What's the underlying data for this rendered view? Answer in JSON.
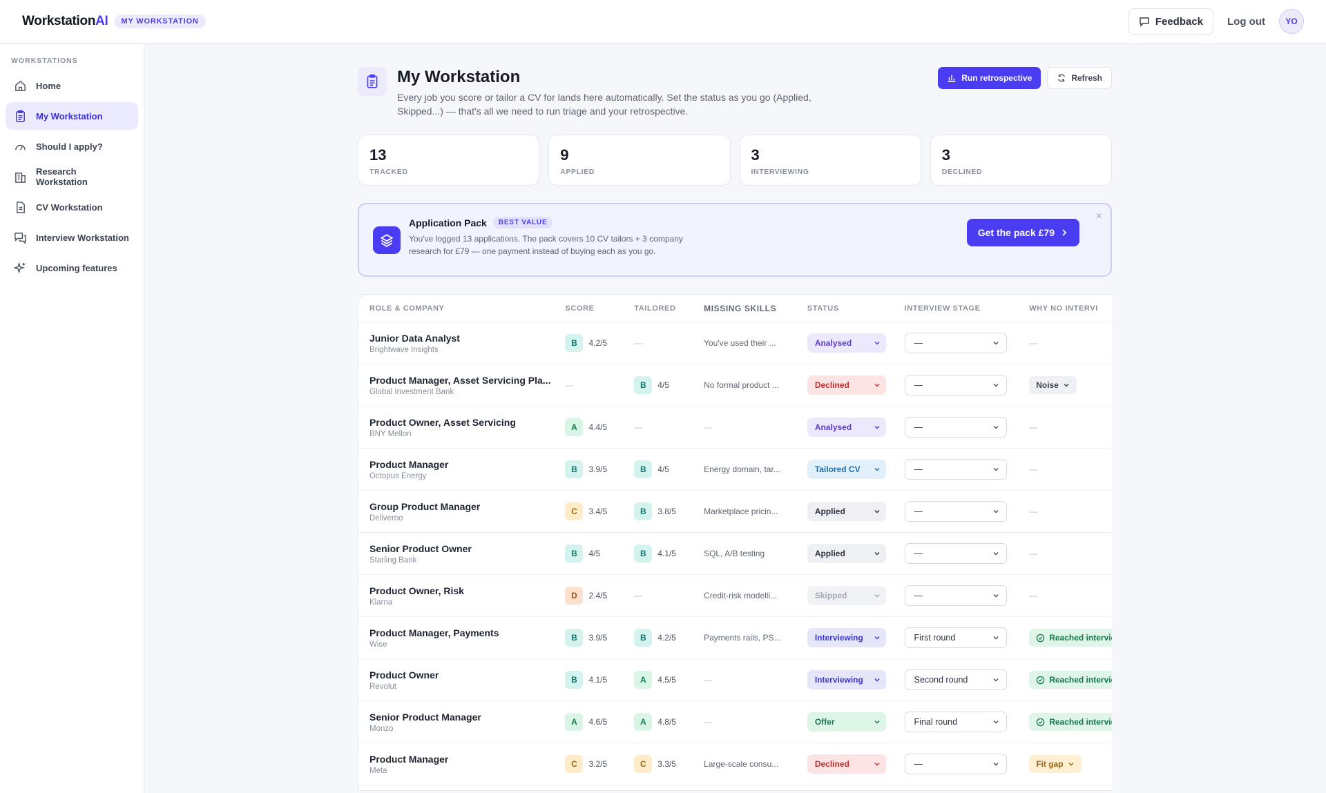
{
  "app": {
    "name_main": "Workstation",
    "name_ai": "AI",
    "badge": "MY WORKSTATION"
  },
  "topbar": {
    "feedback": "Feedback",
    "logout": "Log out",
    "avatar": "YO"
  },
  "sidebar": {
    "heading": "WORKSTATIONS",
    "items": [
      {
        "label": "Home",
        "icon": "home-icon"
      },
      {
        "label": "My Workstation",
        "icon": "clipboard-icon"
      },
      {
        "label": "Should I apply?",
        "icon": "gauge-icon"
      },
      {
        "label": "Research Workstation",
        "icon": "building-icon"
      },
      {
        "label": "CV Workstation",
        "icon": "document-icon"
      },
      {
        "label": "Interview Workstation",
        "icon": "chat-icon"
      },
      {
        "label": "Upcoming features",
        "icon": "sparkle-icon"
      }
    ]
  },
  "header": {
    "title": "My Workstation",
    "description": "Every job you score or tailor a CV for lands here automatically. Set the status as you go (Applied, Skipped...) — that's all we need to run triage and your retrospective.",
    "run_retro": "Run retrospective",
    "refresh": "Refresh"
  },
  "stats": [
    {
      "value": "13",
      "label": "TRACKED"
    },
    {
      "value": "9",
      "label": "APPLIED"
    },
    {
      "value": "3",
      "label": "INTERVIEWING"
    },
    {
      "value": "3",
      "label": "DECLINED"
    }
  ],
  "pack": {
    "title": "Application Pack",
    "badge": "BEST VALUE",
    "description": "You've logged 13 applications. The pack covers 10 CV tailors + 3 company research for £79 — one payment instead of buying each as you go.",
    "cta": "Get the pack £79",
    "close": "×"
  },
  "table": {
    "columns": [
      "ROLE & COMPANY",
      "SCORE",
      "TAILORED",
      "MISSING SKILLS",
      "STATUS",
      "INTERVIEW STAGE",
      "WHY NO INTERVI"
    ],
    "rows": [
      {
        "role": "Junior Data Analyst",
        "company": "Brightwave Insights",
        "score_grade": "B",
        "score": "4.2/5",
        "tail_grade": "",
        "tailored": "—",
        "missing": "You've used their ...",
        "status": "Analysed",
        "status_key": "analysed",
        "stage": "—",
        "why": "—",
        "why_key": "none"
      },
      {
        "role": "Product Manager, Asset Servicing Pla...",
        "company": "Global Investment Bank",
        "score_grade": "",
        "score": "—",
        "tail_grade": "B",
        "tailored": "4/5",
        "missing": "No formal product ...",
        "status": "Declined",
        "status_key": "declined",
        "stage": "—",
        "why": "Noise",
        "why_key": "noise"
      },
      {
        "role": "Product Owner, Asset Servicing",
        "company": "BNY Mellon",
        "score_grade": "A",
        "score": "4.4/5",
        "tail_grade": "",
        "tailored": "—",
        "missing": "—",
        "status": "Analysed",
        "status_key": "analysed",
        "stage": "—",
        "why": "—",
        "why_key": "none"
      },
      {
        "role": "Product Manager",
        "company": "Octopus Energy",
        "score_grade": "B",
        "score": "3.9/5",
        "tail_grade": "B",
        "tailored": "4/5",
        "missing": "Energy domain, tar...",
        "status": "Tailored CV",
        "status_key": "tailored",
        "stage": "—",
        "why": "—",
        "why_key": "none"
      },
      {
        "role": "Group Product Manager",
        "company": "Deliveroo",
        "score_grade": "C",
        "score": "3.4/5",
        "tail_grade": "B",
        "tailored": "3.8/5",
        "missing": "Marketplace pricin...",
        "status": "Applied",
        "status_key": "applied",
        "stage": "—",
        "why": "—",
        "why_key": "none"
      },
      {
        "role": "Senior Product Owner",
        "company": "Starling Bank",
        "score_grade": "B",
        "score": "4/5",
        "tail_grade": "B",
        "tailored": "4.1/5",
        "missing": "SQL, A/B testing",
        "status": "Applied",
        "status_key": "applied",
        "stage": "—",
        "why": "—",
        "why_key": "none"
      },
      {
        "role": "Product Owner, Risk",
        "company": "Klarna",
        "score_grade": "D",
        "score": "2.4/5",
        "tail_grade": "",
        "tailored": "—",
        "missing": "Credit-risk modelli...",
        "status": "Skipped",
        "status_key": "skipped",
        "stage": "—",
        "why": "—",
        "why_key": "none"
      },
      {
        "role": "Product Manager, Payments",
        "company": "Wise",
        "score_grade": "B",
        "score": "3.9/5",
        "tail_grade": "B",
        "tailored": "4.2/5",
        "missing": "Payments rails, PS...",
        "status": "Interviewing",
        "status_key": "interviewing",
        "stage": "First round",
        "why": "Reached interview",
        "why_key": "reached"
      },
      {
        "role": "Product Owner",
        "company": "Revolut",
        "score_grade": "B",
        "score": "4.1/5",
        "tail_grade": "A",
        "tailored": "4.5/5",
        "missing": "—",
        "status": "Interviewing",
        "status_key": "interviewing",
        "stage": "Second round",
        "why": "Reached interview",
        "why_key": "reached"
      },
      {
        "role": "Senior Product Manager",
        "company": "Monzo",
        "score_grade": "A",
        "score": "4.6/5",
        "tail_grade": "A",
        "tailored": "4.8/5",
        "missing": "—",
        "status": "Offer",
        "status_key": "offer",
        "stage": "Final round",
        "why": "Reached interview",
        "why_key": "reached"
      },
      {
        "role": "Product Manager",
        "company": "Meta",
        "score_grade": "C",
        "score": "3.2/5",
        "tail_grade": "C",
        "tailored": "3.3/5",
        "missing": "Large-scale consu...",
        "status": "Declined",
        "status_key": "declined",
        "stage": "—",
        "why": "Fit gap",
        "why_key": "fit"
      }
    ]
  }
}
